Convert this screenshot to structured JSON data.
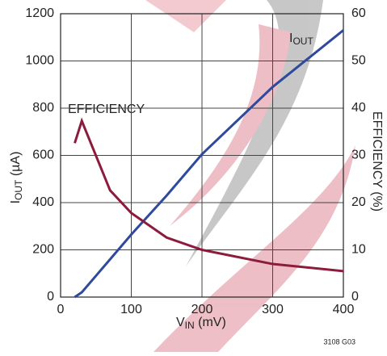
{
  "chart_data": {
    "type": "line",
    "xlabel": [
      "V",
      "IN",
      " (mV)"
    ],
    "ylabel": [
      "I",
      "OUT",
      " (µA)"
    ],
    "y2label": "EFFICIENCY (%)",
    "annotations": {
      "efficiency": "EFFICIENCY",
      "iout": [
        "I",
        "OUT"
      ]
    },
    "footnote": "3108 G03",
    "xlim": [
      0,
      400
    ],
    "xticks": [
      0,
      100,
      200,
      300,
      400
    ],
    "ylim": [
      0,
      1200
    ],
    "yticks": [
      0,
      200,
      400,
      600,
      800,
      1000,
      1200
    ],
    "y2lim": [
      0,
      60
    ],
    "y2ticks": [
      0,
      10,
      20,
      30,
      40,
      50,
      60
    ],
    "grid": true,
    "series": [
      {
        "name": "IOUT",
        "color": "#2f4a9c",
        "x": [
          20,
          30,
          50,
          100,
          150,
          200,
          300,
          400
        ],
        "values": [
          0,
          20,
          90,
          265,
          430,
          605,
          890,
          1130
        ]
      },
      {
        "name": "EFFICIENCY",
        "color": "#8c1b3c",
        "axis": "y2",
        "x": [
          20,
          30,
          70,
          100,
          150,
          200,
          300,
          400
        ],
        "values": [
          32.6,
          37.3,
          22.6,
          17.8,
          12.6,
          10,
          7,
          5.5
        ]
      }
    ]
  }
}
